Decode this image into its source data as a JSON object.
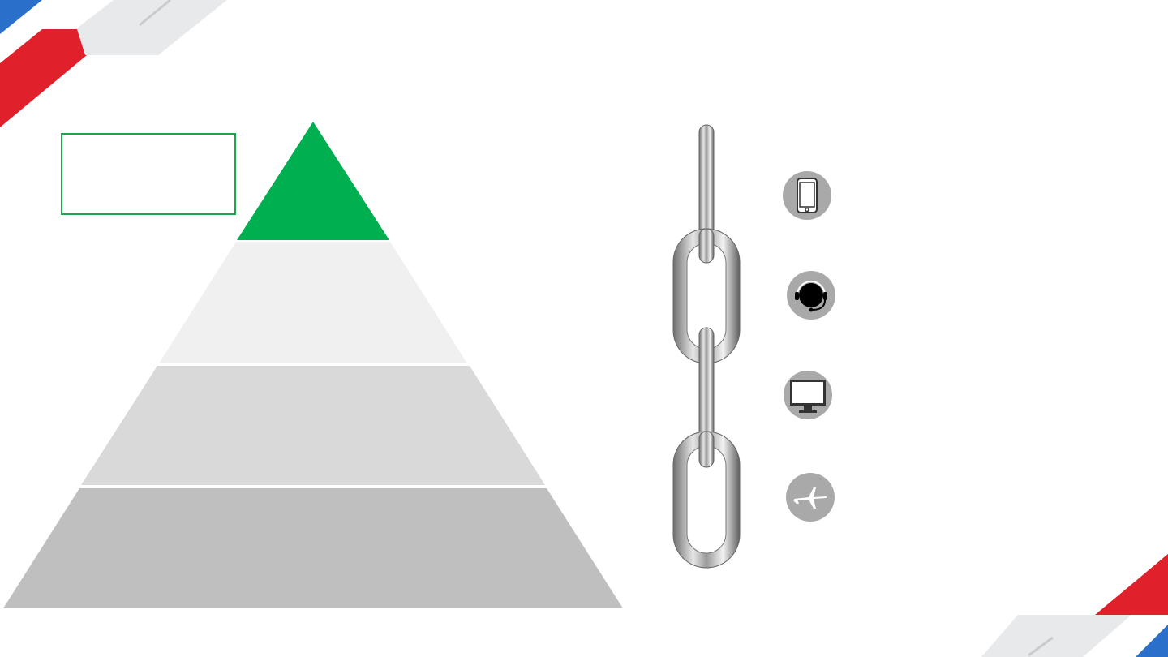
{
  "colors": {
    "accent_green": "#00b050",
    "red": "#e0202a",
    "blue": "#2a6fc9",
    "light_gray_band": "#e8e9eb",
    "tier_1": "#f0f0f0",
    "tier_2": "#d9d9d9",
    "tier_3": "#bfbfbf",
    "icon_circle": "#a9a9a9"
  },
  "pyramid": {
    "levels": [
      {
        "name": "apex",
        "color": "#00b050",
        "label": ""
      },
      {
        "name": "tier-1",
        "color": "#f0f0f0",
        "label": ""
      },
      {
        "name": "tier-2",
        "color": "#d9d9d9",
        "label": ""
      },
      {
        "name": "tier-3",
        "color": "#bfbfbf",
        "label": ""
      }
    ]
  },
  "callout": {
    "text": ""
  },
  "icons": [
    {
      "name": "smartphone-icon",
      "label": ""
    },
    {
      "name": "headset-icon",
      "label": ""
    },
    {
      "name": "monitor-icon",
      "label": ""
    },
    {
      "name": "airplane-icon",
      "label": ""
    }
  ]
}
